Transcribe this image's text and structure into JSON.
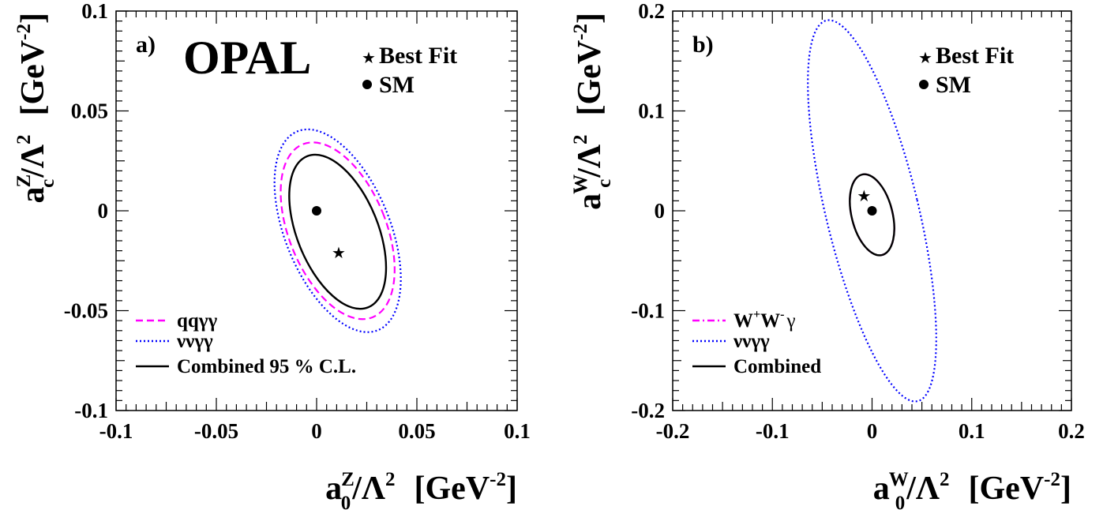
{
  "chart_data": [
    {
      "type": "scatter",
      "panel_label": "a)",
      "experiment_label": "OPAL",
      "xlabel": "a_0^Z/Λ^2 [GeV^-2]",
      "ylabel": "a_c^Z/Λ^2 [GeV^-2]",
      "xlim": [
        -0.1,
        0.1
      ],
      "ylim": [
        -0.1,
        0.1
      ],
      "x_ticks": [
        "-0.1",
        "-0.05",
        "0",
        "0.05",
        "0.1"
      ],
      "y_ticks": [
        "-0.1",
        "-0.05",
        "0",
        "0.05",
        "0.1"
      ],
      "axis_label_parts": {
        "x": {
          "base": "a",
          "sub": "0",
          "sup": "Z",
          "lambda": "/Λ",
          "lambda_sup": "2",
          "unit": "[GeV",
          "unit_sup": "-2",
          "unit_close": "]"
        },
        "y": {
          "base": "a",
          "sub": "c",
          "sup": "Z",
          "lambda": "/Λ",
          "lambda_sup": "2",
          "unit": "[GeV",
          "unit_sup": "-2",
          "unit_close": "]"
        }
      },
      "markers": [
        {
          "label": "Best Fit",
          "symbol": "star",
          "x": 0.011,
          "y": -0.021
        },
        {
          "label": "SM",
          "symbol": "dot",
          "x": 0.0,
          "y": 0.0
        }
      ],
      "series": [
        {
          "name": "qqγγ",
          "style": "dashed",
          "color": "#ff00ff",
          "ellipse": {
            "cx": 0.0105,
            "cy": -0.01,
            "rx": 0.0242,
            "ry": 0.0467,
            "angle": -22
          }
        },
        {
          "name": "ννγγ",
          "style": "dotted",
          "color": "#0000ff",
          "ellipse": {
            "cx": 0.0105,
            "cy": -0.01,
            "rx": 0.0262,
            "ry": 0.0537,
            "angle": -22
          }
        },
        {
          "name": "Combined 95 % C.L.",
          "style": "solid",
          "color": "#000000",
          "ellipse": {
            "cx": 0.0105,
            "cy": -0.0105,
            "rx": 0.0202,
            "ry": 0.0408,
            "angle": -22
          }
        }
      ],
      "legend_position": "bottom-left",
      "grid": false
    },
    {
      "type": "scatter",
      "panel_label": "b)",
      "xlabel": "a_0^W/Λ^2 [GeV^-2]",
      "ylabel": "a_c^W/Λ^2 [GeV^-2]",
      "xlim": [
        -0.2,
        0.2
      ],
      "ylim": [
        -0.2,
        0.2
      ],
      "x_ticks": [
        "-0.2",
        "-0.1",
        "0",
        "0.1",
        "0.2"
      ],
      "y_ticks": [
        "-0.2",
        "-0.1",
        "0",
        "0.1",
        "0.2"
      ],
      "axis_label_parts": {
        "x": {
          "base": "a",
          "sub": "0",
          "sup": "W",
          "lambda": "/Λ",
          "lambda_sup": "2",
          "unit": "[GeV",
          "unit_sup": "-2",
          "unit_close": "]"
        },
        "y": {
          "base": "a",
          "sub": "c",
          "sup": "W",
          "lambda": "/Λ",
          "lambda_sup": "2",
          "unit": "[GeV",
          "unit_sup": "-2",
          "unit_close": "]"
        }
      },
      "markers": [
        {
          "label": "Best Fit",
          "symbol": "star",
          "x": -0.008,
          "y": 0.015
        },
        {
          "label": "SM",
          "symbol": "dot",
          "x": 0.0,
          "y": 0.0
        }
      ],
      "series": [
        {
          "name": "W+W-γ",
          "legend_parts": [
            "W",
            "+",
            "W",
            "-",
            "γ"
          ],
          "style": "dashdot",
          "color": "#ff00ff",
          "ellipse": {
            "cx": 0.0,
            "cy": -0.004,
            "rx": 0.0205,
            "ry": 0.0415,
            "angle": -14
          }
        },
        {
          "name": "ννγγ",
          "style": "dotted",
          "color": "#0000ff",
          "ellipse": {
            "cx": 0.0,
            "cy": 0.0,
            "rx": 0.0465,
            "ry": 0.196,
            "angle": -13.5
          }
        },
        {
          "name": "Combined",
          "style": "solid",
          "color": "#000000",
          "ellipse": {
            "cx": 0.0,
            "cy": -0.004,
            "rx": 0.0205,
            "ry": 0.0415,
            "angle": -14
          }
        }
      ],
      "legend_position": "bottom-left",
      "grid": false
    }
  ]
}
